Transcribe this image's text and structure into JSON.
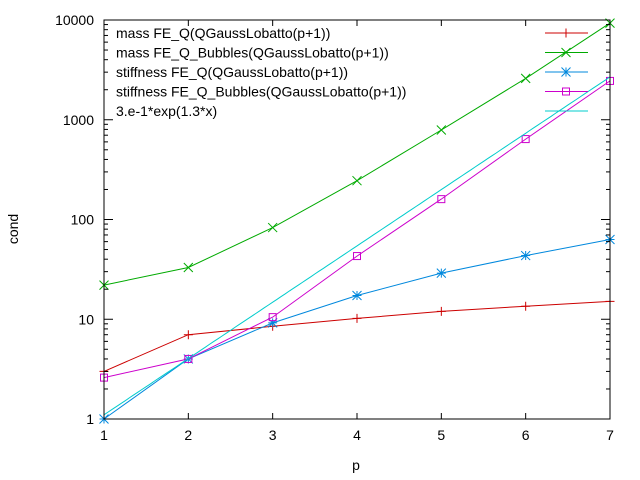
{
  "chart_data": {
    "type": "line",
    "xlabel": "p",
    "ylabel": "cond",
    "yscale": "log",
    "xlim": [
      1,
      7
    ],
    "ylim": [
      1,
      10000
    ],
    "grid": false,
    "legend_position": "top-right",
    "x_ticks": [
      "1",
      "2",
      "3",
      "4",
      "5",
      "6",
      "7"
    ],
    "y_ticks": [
      {
        "value": 1,
        "label": "1"
      },
      {
        "value": 10,
        "label": "10"
      },
      {
        "value": 100,
        "label": "100"
      },
      {
        "value": 1000,
        "label": "1000"
      },
      {
        "value": 10000,
        "label": "10000"
      }
    ],
    "series": [
      {
        "name": "mass FE_Q(QGaussLobatto(p+1))",
        "color": "#cc0000",
        "marker": "plus",
        "x": [
          1,
          2,
          3,
          4,
          5,
          6,
          7
        ],
        "y": [
          3.0,
          7.0,
          8.5,
          10.2,
          12.0,
          13.5,
          15.1
        ]
      },
      {
        "name": "mass FE_Q_Bubbles(QGaussLobatto(p+1))",
        "color": "#00aa00",
        "marker": "cross",
        "x": [
          1,
          2,
          3,
          4,
          5,
          6,
          7
        ],
        "y": [
          22,
          33,
          83,
          245,
          790,
          2600,
          9300
        ]
      },
      {
        "name": "stiffness FE_Q(QGaussLobatto(p+1))",
        "color": "#0088dd",
        "marker": "star",
        "x": [
          1,
          2,
          3,
          4,
          5,
          6,
          7
        ],
        "y": [
          1.0,
          4.0,
          9.2,
          17.3,
          29.0,
          43.5,
          63.0
        ]
      },
      {
        "name": "stiffness FE_Q_Bubbles(QGaussLobatto(p+1))",
        "color": "#cc00cc",
        "marker": "square",
        "x": [
          1,
          2,
          3,
          4,
          5,
          6,
          7
        ],
        "y": [
          2.6,
          4.0,
          10.5,
          43.0,
          160,
          640,
          2450
        ]
      },
      {
        "name": "3.e-1*exp(1.3*x)",
        "color": "#00cccc",
        "marker": "none",
        "function": "0.3*exp(1.3*x)",
        "x": [
          1,
          2,
          3,
          4,
          5,
          6,
          7
        ]
      }
    ]
  }
}
